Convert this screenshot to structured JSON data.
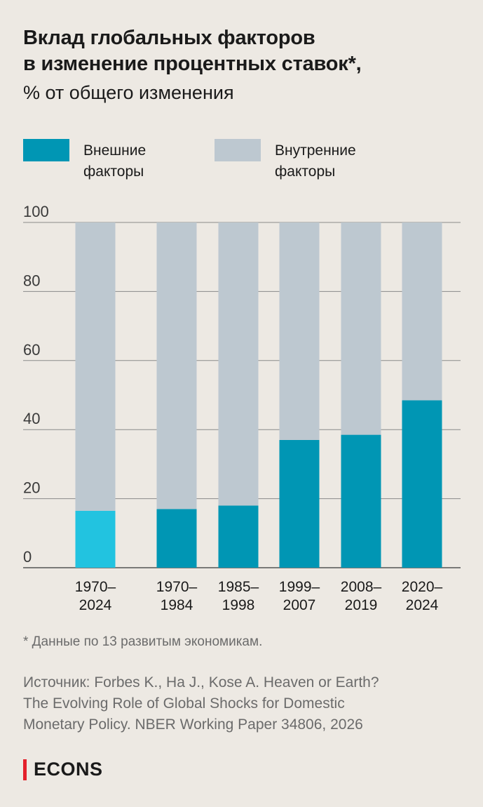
{
  "header": {
    "title_line1": "Вклад глобальных факторов",
    "title_line2": "в изменение процентных ставок*,",
    "subtitle": "% от общего изменения"
  },
  "legend": [
    {
      "label": "Внешние факторы",
      "color": "#0096b4"
    },
    {
      "label": "Внутренние факторы",
      "color": "#bdc8d0"
    }
  ],
  "chart_data": {
    "type": "bar",
    "stacked": true,
    "categories": [
      [
        "1970–",
        "2024"
      ],
      [
        "1970–",
        "1984"
      ],
      [
        "1985–",
        "1998"
      ],
      [
        "1999–",
        "2007"
      ],
      [
        "2008–",
        "2019"
      ],
      [
        "2020–",
        "2024"
      ]
    ],
    "series": [
      {
        "name": "Внешние факторы",
        "values": [
          16.5,
          17,
          18,
          37,
          38.5,
          48.5
        ],
        "color": "#0096b4",
        "highlight_color": "#22c3e0",
        "highlight_index": 0
      },
      {
        "name": "Внутренние факторы",
        "values": [
          83.5,
          83,
          82,
          63,
          61.5,
          51.5
        ],
        "color": "#bdc8d0"
      }
    ],
    "ylim": [
      0,
      100
    ],
    "yticks": [
      0,
      20,
      40,
      60,
      80,
      100
    ],
    "grid": true,
    "xlabel": "",
    "ylabel": ""
  },
  "footnote": "* Данные по 13 развитым экономикам.",
  "source": {
    "line1": "Источник: Forbes K., Ha J., Kose A. Heaven or Earth?",
    "line2": "The Evolving Role of Global Shocks for Domestic",
    "line3": "Monetary Policy. NBER Working Paper 34806, 2026"
  },
  "brand": "ECONS"
}
